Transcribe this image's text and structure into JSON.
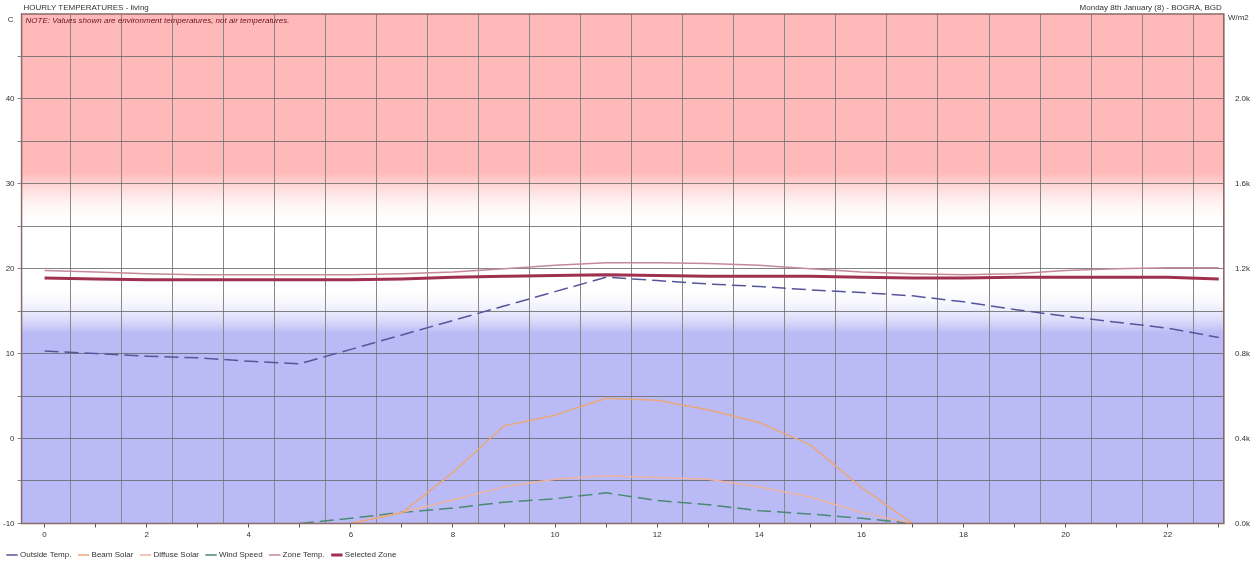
{
  "chart_data": {
    "type": "line",
    "title": "HOURLY TEMPERATURES - living",
    "subtitle": "Monday 8th January (8) - BOGRA, BGD",
    "ylabel": "C",
    "y2label": "W/m2",
    "annotations": [
      "NOTE: Values shown are environment temperatures, not air temperatures."
    ],
    "x": [
      0,
      1,
      2,
      3,
      4,
      5,
      6,
      7,
      8,
      9,
      10,
      11,
      12,
      13,
      14,
      15,
      16,
      17,
      18,
      19,
      20,
      21,
      22,
      23
    ],
    "xlim": [
      -0.45,
      23.1
    ],
    "xticks": [
      {
        "value": 0,
        "label": "0"
      },
      {
        "value": 1,
        "label": null
      },
      {
        "value": 2,
        "label": "2"
      },
      {
        "value": 3,
        "label": null
      },
      {
        "value": 4,
        "label": "4"
      },
      {
        "value": 5,
        "label": null
      },
      {
        "value": 6,
        "label": "6"
      },
      {
        "value": 7,
        "label": null
      },
      {
        "value": 8,
        "label": "8"
      },
      {
        "value": 9,
        "label": null
      },
      {
        "value": 10,
        "label": "10"
      },
      {
        "value": 11,
        "label": null
      },
      {
        "value": 12,
        "label": "12"
      },
      {
        "value": 13,
        "label": null
      },
      {
        "value": 14,
        "label": "14"
      },
      {
        "value": 15,
        "label": null
      },
      {
        "value": 16,
        "label": "16"
      },
      {
        "value": 17,
        "label": null
      },
      {
        "value": 18,
        "label": "18"
      },
      {
        "value": 19,
        "label": null
      },
      {
        "value": 20,
        "label": "20"
      },
      {
        "value": 21,
        "label": null
      },
      {
        "value": 22,
        "label": "22"
      },
      {
        "value": 23,
        "label": null
      }
    ],
    "ylim": [
      -10,
      50
    ],
    "yticks": [
      -10,
      {
        "value": -5,
        "label": null
      },
      0,
      {
        "value": 5,
        "label": null
      },
      10,
      {
        "value": 15,
        "label": null
      },
      20,
      {
        "value": 25,
        "label": null
      },
      30,
      {
        "value": 35,
        "label": null
      },
      40,
      {
        "value": 45,
        "label": null
      }
    ],
    "y2lim": [
      0,
      2400
    ],
    "y2ticks": [
      {
        "value": 0,
        "label": "0.0k"
      },
      {
        "value": 200,
        "label": null
      },
      {
        "value": 400,
        "label": "0.4k"
      },
      {
        "value": 600,
        "label": null
      },
      {
        "value": 800,
        "label": "0.8k"
      },
      {
        "value": 1000,
        "label": null
      },
      {
        "value": 1200,
        "label": "1.2k"
      },
      {
        "value": 1400,
        "label": null
      },
      {
        "value": 1600,
        "label": "1.6k"
      },
      {
        "value": 1800,
        "label": null
      },
      {
        "value": 2000,
        "label": "2.0k"
      },
      {
        "value": 2200,
        "label": null
      }
    ],
    "bands": [
      {
        "axis": "y",
        "from": 25,
        "to": 50,
        "color": "#ffb9b9"
      },
      {
        "axis": "y",
        "from": -10,
        "to": 18,
        "color": "#babaf7"
      }
    ],
    "grid": true,
    "legend": "bottom",
    "marker": "none",
    "series": [
      {
        "name": "Outside Temp.",
        "color": "#55559a",
        "line_style": "dashed",
        "values": [
          10.3,
          10.0,
          9.7,
          9.5,
          9.1,
          8.8,
          10.5,
          12.2,
          13.9,
          15.6,
          17.3,
          19.0,
          18.6,
          18.2,
          17.9,
          17.5,
          17.2,
          16.8,
          16.1,
          15.2,
          14.4,
          13.7,
          13.0,
          11.9
        ]
      },
      {
        "name": "Beam Solar",
        "color": "#e8a878",
        "axis": "y2",
        "values": [
          null,
          null,
          null,
          null,
          null,
          null,
          0,
          50,
          240,
          460,
          510,
          590,
          580,
          535,
          475,
          370,
          170,
          0,
          null,
          null,
          null,
          null,
          null,
          null
        ]
      },
      {
        "name": "Diffuse Solar",
        "color": "#eeb4a0",
        "axis": "y2",
        "values": [
          null,
          null,
          null,
          null,
          null,
          null,
          0,
          52,
          110,
          172,
          208,
          224,
          216,
          208,
          172,
          124,
          52,
          0,
          null,
          null,
          null,
          null,
          null,
          null
        ]
      },
      {
        "name": "Wind Speed",
        "color": "#4a8a70",
        "line_style": "dashed",
        "values": [
          null,
          null,
          null,
          null,
          null,
          -10,
          -9.4,
          -8.7,
          -8.2,
          -7.5,
          -7.1,
          -6.4,
          -7.3,
          -7.8,
          -8.5,
          -8.9,
          -9.4,
          -10,
          null,
          null,
          null,
          null,
          null,
          null
        ]
      },
      {
        "name": "Zone Temp.",
        "color": "#c48a98",
        "values": [
          19.8,
          19.6,
          19.4,
          19.3,
          19.3,
          19.3,
          19.3,
          19.4,
          19.6,
          20.0,
          20.4,
          20.7,
          20.7,
          20.6,
          20.4,
          20.0,
          19.6,
          19.4,
          19.3,
          19.4,
          19.8,
          20.0,
          20.1,
          20.1
        ]
      },
      {
        "name": "Selected Zone",
        "color": "#a0304f",
        "values": [
          18.9,
          18.8,
          18.7,
          18.7,
          18.7,
          18.7,
          18.7,
          18.8,
          19.0,
          19.1,
          19.2,
          19.3,
          19.2,
          19.1,
          19.1,
          19.1,
          19.0,
          18.9,
          18.9,
          19.0,
          19.0,
          19.0,
          19.0,
          18.8
        ]
      }
    ]
  }
}
